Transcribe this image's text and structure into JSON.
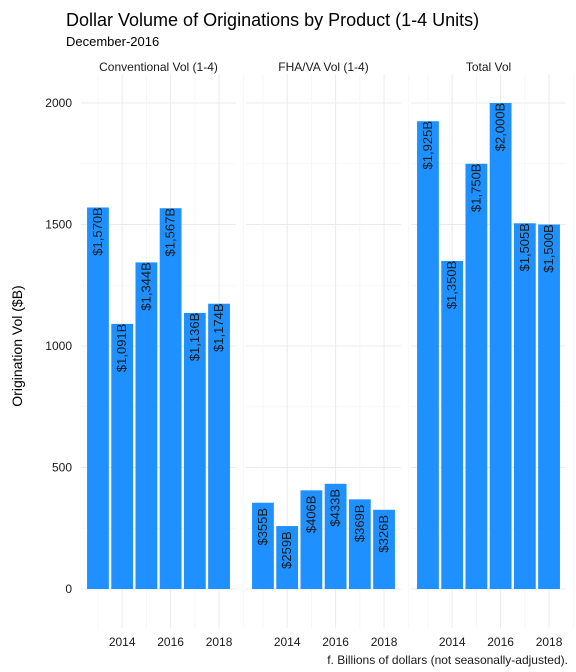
{
  "chart_data": {
    "type": "bar",
    "title": "Dollar Volume of Originations by Product (1-4 Units)",
    "subtitle": "December-2016",
    "ylabel": "Origination Vol ($B)",
    "caption": "f. Billions of dollars (not seasonally-adjusted).",
    "ylim": [
      0,
      2100
    ],
    "y_ticks": [
      0,
      500,
      1000,
      1500,
      2000
    ],
    "x": [
      2013,
      2014,
      2015,
      2016,
      2017,
      2018
    ],
    "x_ticks": [
      2014,
      2016,
      2018
    ],
    "bar_color": "#1E90FF",
    "grid": true,
    "panels": [
      {
        "name": "Conventional Vol (1-4)",
        "values": [
          1570,
          1091,
          1344,
          1567,
          1136,
          1174
        ],
        "labels": [
          "$1,570B",
          "$1,091B",
          "$1,344B",
          "$1,567B",
          "$1,136B",
          "$1,174B"
        ]
      },
      {
        "name": "FHA/VA Vol (1-4)",
        "values": [
          355,
          259,
          406,
          433,
          369,
          326
        ],
        "labels": [
          "$355B",
          "$259B",
          "$406B",
          "$433B",
          "$369B",
          "$326B"
        ]
      },
      {
        "name": "Total Vol",
        "values": [
          1925,
          1350,
          1750,
          2000,
          1505,
          1500
        ],
        "labels": [
          "$1,925B",
          "$1,350B",
          "$1,750B",
          "$2,000B",
          "$1,505B",
          "$1,500B"
        ]
      }
    ]
  }
}
